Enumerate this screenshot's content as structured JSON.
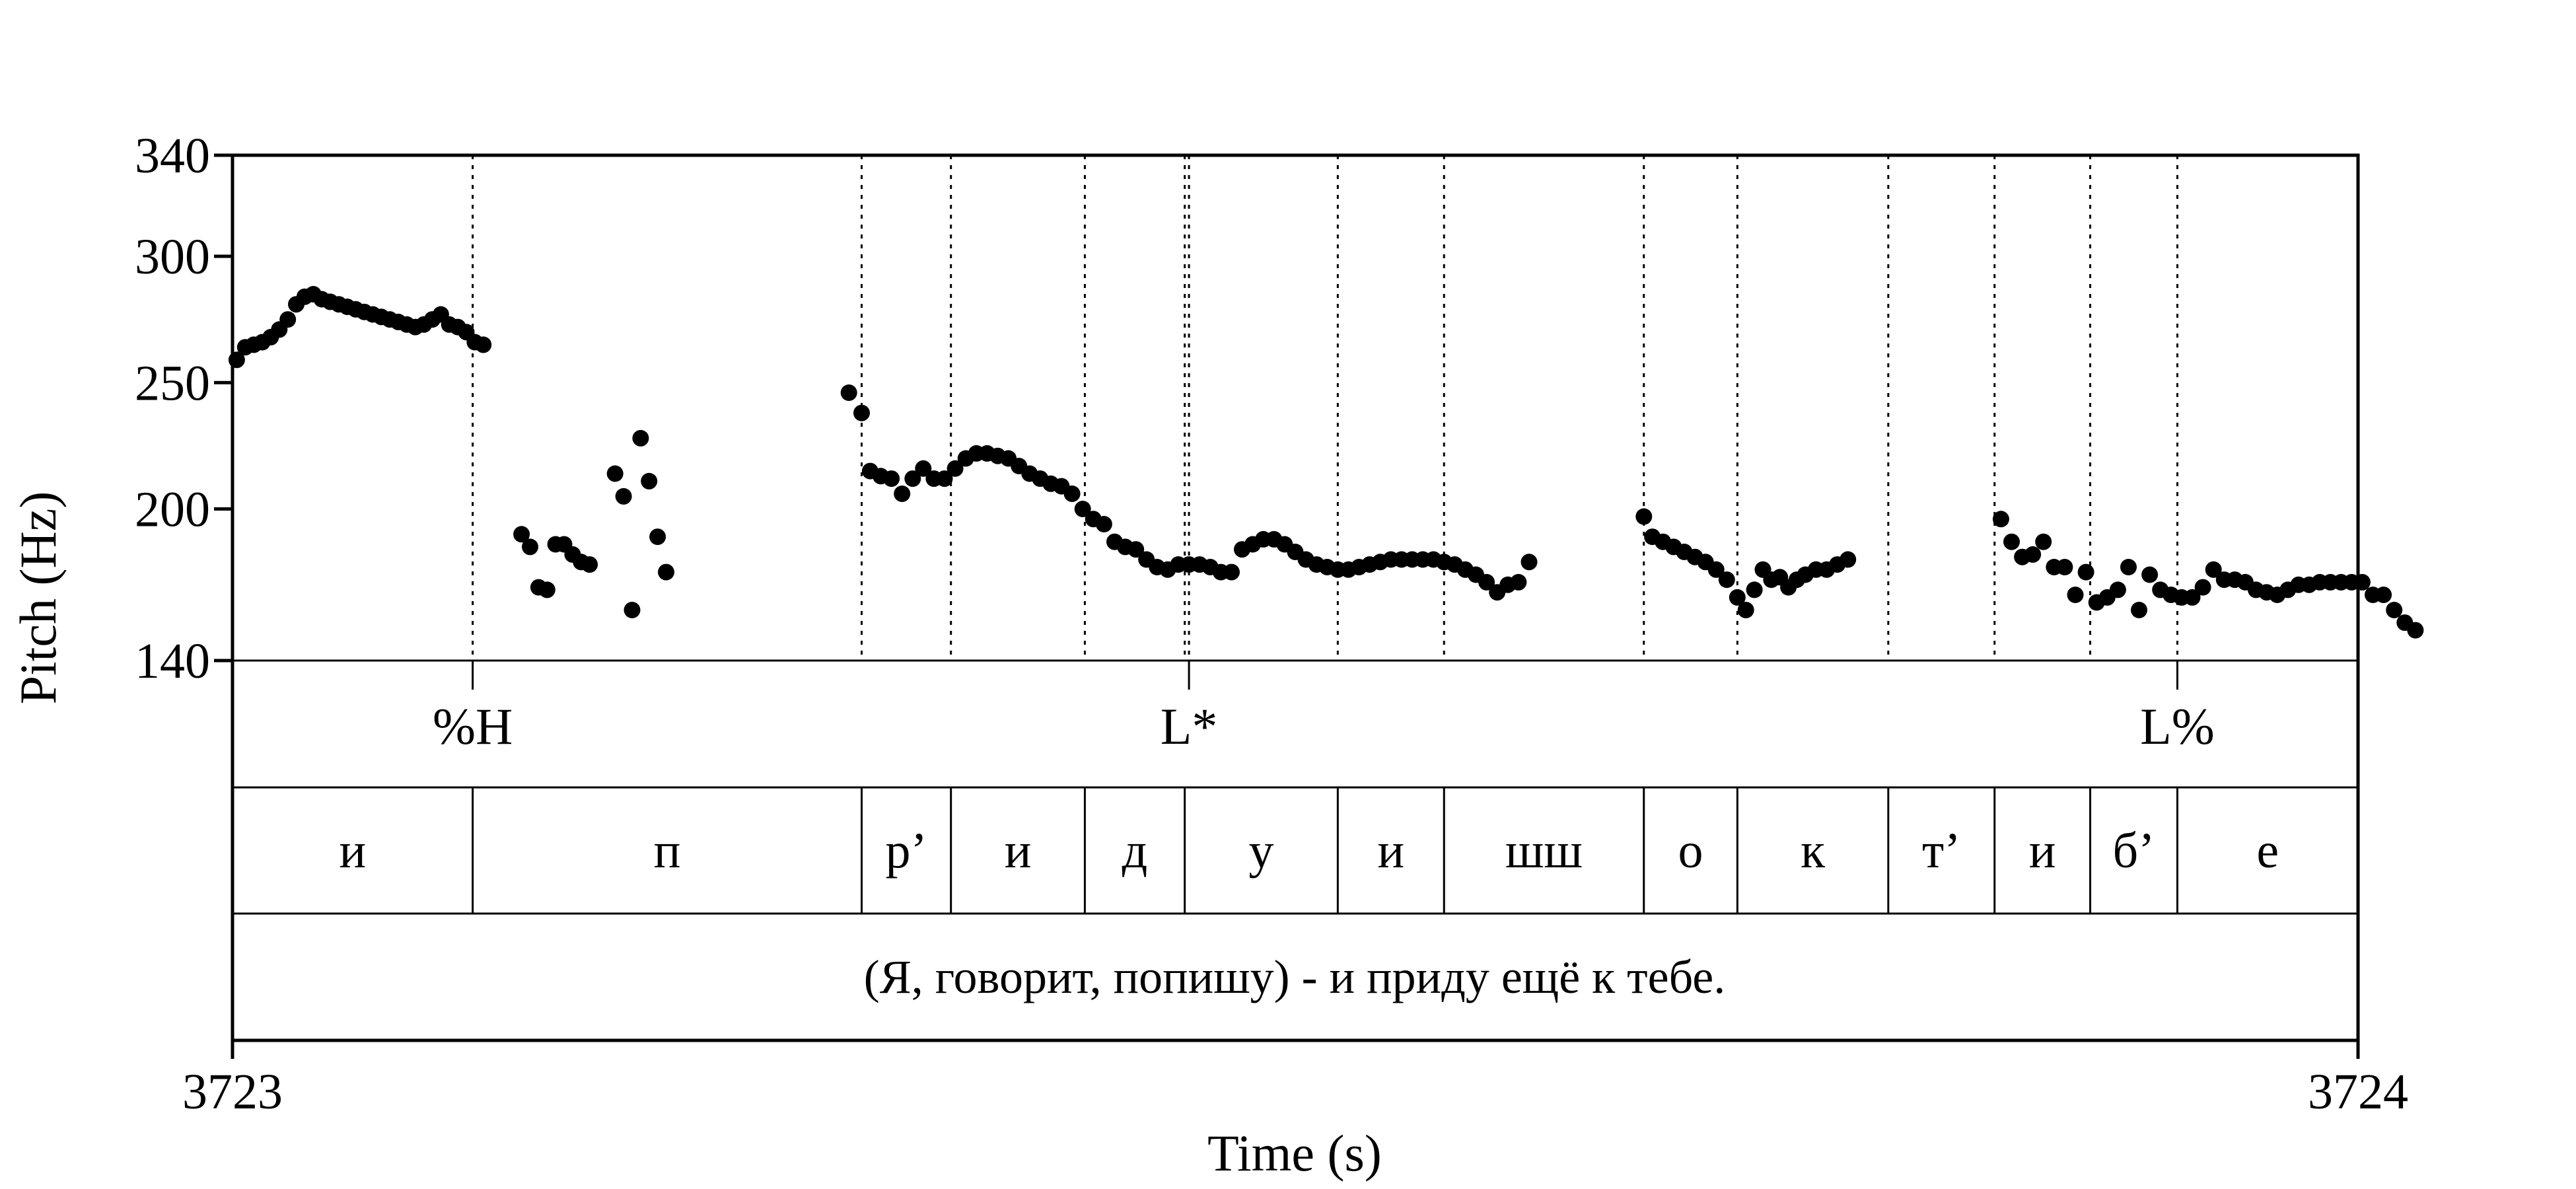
{
  "chart_data": {
    "type": "scatter",
    "title": "",
    "xlabel": "Time (s)",
    "ylabel": "Pitch (Hz)",
    "xlim": [
      3723,
      3724
    ],
    "ylim": [
      140,
      340
    ],
    "y_ticks": [
      140,
      200,
      250,
      300,
      340
    ],
    "x_ticks": [
      "3723",
      "3724"
    ],
    "grid": false,
    "colors": {
      "points": "#000000",
      "lines": "#000000",
      "background": "#ffffff"
    },
    "pitch": [
      [
        3723.002,
        259
      ],
      [
        3723.006,
        264
      ],
      [
        3723.01,
        265
      ],
      [
        3723.014,
        266
      ],
      [
        3723.018,
        268
      ],
      [
        3723.022,
        271
      ],
      [
        3723.026,
        275
      ],
      [
        3723.03,
        281
      ],
      [
        3723.034,
        284
      ],
      [
        3723.038,
        285
      ],
      [
        3723.042,
        283
      ],
      [
        3723.046,
        282
      ],
      [
        3723.05,
        281
      ],
      [
        3723.054,
        280
      ],
      [
        3723.058,
        279
      ],
      [
        3723.062,
        278
      ],
      [
        3723.066,
        277
      ],
      [
        3723.07,
        276
      ],
      [
        3723.074,
        275
      ],
      [
        3723.078,
        274
      ],
      [
        3723.082,
        273
      ],
      [
        3723.086,
        272
      ],
      [
        3723.09,
        273
      ],
      [
        3723.094,
        275
      ],
      [
        3723.098,
        277
      ],
      [
        3723.102,
        273
      ],
      [
        3723.106,
        272
      ],
      [
        3723.11,
        270
      ],
      [
        3723.114,
        266
      ],
      [
        3723.118,
        265
      ],
      [
        3723.136,
        190
      ],
      [
        3723.14,
        185
      ],
      [
        3723.144,
        169
      ],
      [
        3723.148,
        168
      ],
      [
        3723.152,
        186
      ],
      [
        3723.156,
        186
      ],
      [
        3723.16,
        182
      ],
      [
        3723.164,
        179
      ],
      [
        3723.168,
        178
      ],
      [
        3723.18,
        214
      ],
      [
        3723.184,
        205
      ],
      [
        3723.188,
        160
      ],
      [
        3723.192,
        228
      ],
      [
        3723.196,
        211
      ],
      [
        3723.2,
        189
      ],
      [
        3723.204,
        175
      ],
      [
        3723.29,
        246
      ],
      [
        3723.296,
        238
      ],
      [
        3723.3,
        215
      ],
      [
        3723.305,
        213
      ],
      [
        3723.31,
        212
      ],
      [
        3723.315,
        206
      ],
      [
        3723.32,
        212
      ],
      [
        3723.325,
        216
      ],
      [
        3723.33,
        212
      ],
      [
        3723.335,
        212
      ],
      [
        3723.34,
        216
      ],
      [
        3723.345,
        220
      ],
      [
        3723.35,
        222
      ],
      [
        3723.355,
        222
      ],
      [
        3723.36,
        221
      ],
      [
        3723.365,
        220
      ],
      [
        3723.37,
        217
      ],
      [
        3723.375,
        214
      ],
      [
        3723.38,
        212
      ],
      [
        3723.385,
        210
      ],
      [
        3723.39,
        209
      ],
      [
        3723.395,
        206
      ],
      [
        3723.4,
        200
      ],
      [
        3723.405,
        196
      ],
      [
        3723.41,
        194
      ],
      [
        3723.415,
        187
      ],
      [
        3723.42,
        185
      ],
      [
        3723.425,
        184
      ],
      [
        3723.43,
        180
      ],
      [
        3723.435,
        177
      ],
      [
        3723.44,
        176
      ],
      [
        3723.445,
        178
      ],
      [
        3723.45,
        178
      ],
      [
        3723.455,
        178
      ],
      [
        3723.46,
        177
      ],
      [
        3723.465,
        175
      ],
      [
        3723.47,
        175
      ],
      [
        3723.475,
        184
      ],
      [
        3723.48,
        186
      ],
      [
        3723.485,
        188
      ],
      [
        3723.49,
        188
      ],
      [
        3723.495,
        186
      ],
      [
        3723.5,
        183
      ],
      [
        3723.505,
        180
      ],
      [
        3723.51,
        178
      ],
      [
        3723.515,
        177
      ],
      [
        3723.52,
        176
      ],
      [
        3723.525,
        176
      ],
      [
        3723.53,
        177
      ],
      [
        3723.535,
        178
      ],
      [
        3723.54,
        179
      ],
      [
        3723.545,
        180
      ],
      [
        3723.55,
        180
      ],
      [
        3723.555,
        180
      ],
      [
        3723.56,
        180
      ],
      [
        3723.565,
        180
      ],
      [
        3723.57,
        179
      ],
      [
        3723.575,
        178
      ],
      [
        3723.58,
        176
      ],
      [
        3723.585,
        174
      ],
      [
        3723.59,
        171
      ],
      [
        3723.595,
        167
      ],
      [
        3723.6,
        170
      ],
      [
        3723.605,
        171
      ],
      [
        3723.61,
        179
      ],
      [
        3723.664,
        197
      ],
      [
        3723.668,
        189
      ],
      [
        3723.673,
        187
      ],
      [
        3723.678,
        185
      ],
      [
        3723.683,
        183
      ],
      [
        3723.688,
        181
      ],
      [
        3723.693,
        179
      ],
      [
        3723.698,
        176
      ],
      [
        3723.703,
        172
      ],
      [
        3723.708,
        165
      ],
      [
        3723.712,
        160
      ],
      [
        3723.716,
        168
      ],
      [
        3723.72,
        176
      ],
      [
        3723.724,
        172
      ],
      [
        3723.728,
        173
      ],
      [
        3723.732,
        169
      ],
      [
        3723.736,
        172
      ],
      [
        3723.74,
        174
      ],
      [
        3723.745,
        176
      ],
      [
        3723.75,
        176
      ],
      [
        3723.755,
        178
      ],
      [
        3723.76,
        180
      ],
      [
        3723.832,
        196
      ],
      [
        3723.837,
        187
      ],
      [
        3723.842,
        181
      ],
      [
        3723.847,
        182
      ],
      [
        3723.852,
        187
      ],
      [
        3723.857,
        177
      ],
      [
        3723.862,
        177
      ],
      [
        3723.867,
        166
      ],
      [
        3723.872,
        175
      ],
      [
        3723.877,
        163
      ],
      [
        3723.882,
        165
      ],
      [
        3723.887,
        168
      ],
      [
        3723.892,
        177
      ],
      [
        3723.897,
        160
      ],
      [
        3723.902,
        174
      ],
      [
        3723.907,
        168
      ],
      [
        3723.912,
        166
      ],
      [
        3723.917,
        165
      ],
      [
        3723.922,
        165
      ],
      [
        3723.927,
        169
      ],
      [
        3723.932,
        176
      ],
      [
        3723.937,
        172
      ],
      [
        3723.942,
        172
      ],
      [
        3723.947,
        171
      ],
      [
        3723.952,
        168
      ],
      [
        3723.957,
        167
      ],
      [
        3723.962,
        166
      ],
      [
        3723.967,
        168
      ],
      [
        3723.972,
        170
      ],
      [
        3723.977,
        170
      ],
      [
        3723.982,
        171
      ],
      [
        3723.987,
        171
      ],
      [
        3723.992,
        171
      ],
      [
        3723.997,
        171
      ],
      [
        3724.002,
        171
      ],
      [
        3724.007,
        166
      ],
      [
        3724.012,
        166
      ],
      [
        3724.017,
        160
      ],
      [
        3724.022,
        155
      ],
      [
        3724.027,
        152
      ]
    ],
    "tiers": {
      "tones": [
        {
          "time": 3723.113,
          "label": "%H"
        },
        {
          "time": 3723.45,
          "label": "L*"
        },
        {
          "time": 3723.915,
          "label": "L%"
        }
      ],
      "segments": {
        "boundaries": [
          3723.113,
          3723.296,
          3723.338,
          3723.401,
          3723.448,
          3723.52,
          3723.57,
          3723.664,
          3723.708,
          3723.779,
          3723.829,
          3723.874,
          3723.915
        ],
        "labels": [
          "и",
          "п",
          "р’",
          "и",
          "д",
          "у",
          "и",
          "шш",
          "о",
          "к",
          "т’",
          "и",
          "б’",
          "е"
        ]
      },
      "sentence": "(Я, говорит, попишу) - и приду ещё к тебе."
    }
  }
}
